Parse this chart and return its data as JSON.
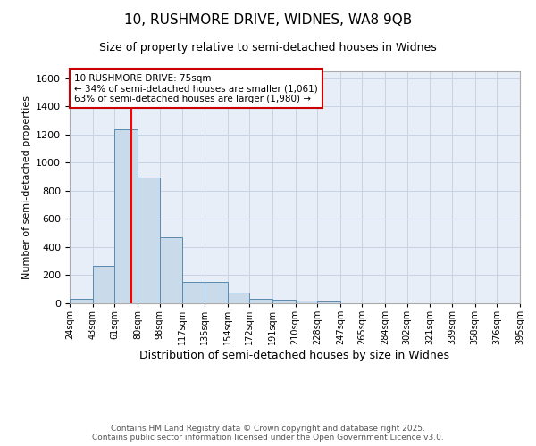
{
  "title_line1": "10, RUSHMORE DRIVE, WIDNES, WA8 9QB",
  "title_line2": "Size of property relative to semi-detached houses in Widnes",
  "xlabel": "Distribution of semi-detached houses by size in Widnes",
  "ylabel": "Number of semi-detached properties",
  "bin_labels": [
    "24sqm",
    "43sqm",
    "61sqm",
    "80sqm",
    "98sqm",
    "117sqm",
    "135sqm",
    "154sqm",
    "172sqm",
    "191sqm",
    "210sqm",
    "228sqm",
    "247sqm",
    "265sqm",
    "284sqm",
    "302sqm",
    "321sqm",
    "339sqm",
    "358sqm",
    "376sqm",
    "395sqm"
  ],
  "bin_edges": [
    24,
    43,
    61,
    80,
    98,
    117,
    135,
    154,
    172,
    191,
    210,
    228,
    247,
    265,
    284,
    302,
    321,
    339,
    358,
    376,
    395
  ],
  "counts": [
    30,
    265,
    1235,
    895,
    470,
    155,
    150,
    75,
    30,
    25,
    20,
    15,
    0,
    0,
    0,
    0,
    0,
    0,
    0,
    0
  ],
  "bar_color": "#c9daea",
  "bar_edge_color": "#5a8ab0",
  "grid_color": "#c8d4e4",
  "background_color": "#e8eef8",
  "fig_background": "#ffffff",
  "red_line_x": 75,
  "annotation_title": "10 RUSHMORE DRIVE: 75sqm",
  "annotation_line2": "← 34% of semi-detached houses are smaller (1,061)",
  "annotation_line3": "63% of semi-detached houses are larger (1,980) →",
  "annotation_box_facecolor": "#ffffff",
  "annotation_box_edgecolor": "#cc0000",
  "footer_line1": "Contains HM Land Registry data © Crown copyright and database right 2025.",
  "footer_line2": "Contains public sector information licensed under the Open Government Licence v3.0.",
  "ylim": [
    0,
    1650
  ],
  "yticks": [
    0,
    200,
    400,
    600,
    800,
    1000,
    1200,
    1400,
    1600
  ],
  "title1_fontsize": 11,
  "title2_fontsize": 9,
  "ylabel_fontsize": 8,
  "xlabel_fontsize": 9,
  "tick_fontsize": 7,
  "ytick_fontsize": 8,
  "footer_fontsize": 6.5,
  "ann_fontsize": 7.5
}
